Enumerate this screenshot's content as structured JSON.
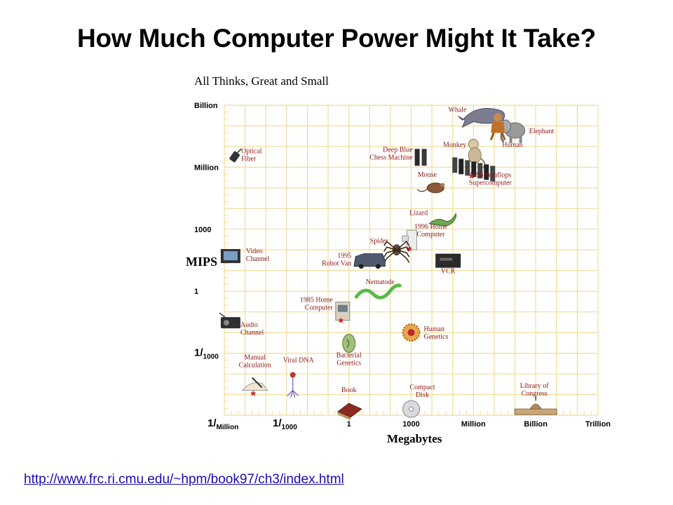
{
  "slide": {
    "title": "How Much Computer Power Might It Take?",
    "source_link": "http://www.frc.ri.cmu.edu/~hpm/book97/ch3/index.html"
  },
  "colors": {
    "grid": "#f2dc9a",
    "text": "#8b1a1a",
    "asterisk": "#cc1b1b",
    "axis_text": "#000000"
  },
  "chart_data": {
    "type": "scatter",
    "title": "All Thinks, Great and Small",
    "xlabel": "Megabytes",
    "ylabel": "MIPS",
    "x_scale": "log",
    "y_scale": "log",
    "xlim": [
      1e-06,
      1000000000000.0
    ],
    "ylim": [
      1e-06,
      1000000000.0
    ],
    "grid": true,
    "x_ticks": [
      {
        "value": 1e-06,
        "label": "1/Million",
        "num": "1",
        "den": "Million"
      },
      {
        "value": 0.001,
        "label": "1/1000",
        "num": "1",
        "den": "1000"
      },
      {
        "value": 1,
        "label": "1"
      },
      {
        "value": 1000.0,
        "label": "1000"
      },
      {
        "value": 1000000.0,
        "label": "Million"
      },
      {
        "value": 1000000000.0,
        "label": "Billion"
      },
      {
        "value": 1000000000000.0,
        "label": "Trillion"
      }
    ],
    "y_ticks": [
      {
        "value": 1000000000.0,
        "label": "Billion"
      },
      {
        "value": 1000000.0,
        "label": "Million"
      },
      {
        "value": 1000.0,
        "label": "1000"
      },
      {
        "value": 1,
        "label": "1"
      },
      {
        "value": 0.001,
        "label": "1/1000",
        "num": "1",
        "den": "1000"
      }
    ],
    "points": [
      {
        "label": "Whale",
        "x": 3000000.0,
        "y": 300000000.0,
        "icon": "whale-icon"
      },
      {
        "label": "Elephant",
        "x": 100000000.0,
        "y": 60000000.0,
        "icon": "elephant-icon"
      },
      {
        "label": "Human",
        "x": 15000000.0,
        "y": 100000000.0,
        "icon": "human-icon"
      },
      {
        "label": "Monkey",
        "x": 1000000.0,
        "y": 6000000.0,
        "icon": "monkey-icon"
      },
      {
        "label": "Deep Blue Chess Machine",
        "x": 3000,
        "y": 3000000.0,
        "icon": "deep-blue-icon"
      },
      {
        "label": "Mouse",
        "x": 15000.0,
        "y": 100000.0,
        "icon": "mouse-icon"
      },
      {
        "label": "1996 Teraflops Supercomputer",
        "x": 1000000.0,
        "y": 1000000.0,
        "icon": "supercomputer-icon",
        "asterisk": true
      },
      {
        "label": "Optical Fiber",
        "x": 3e-06,
        "y": 3000000.0,
        "icon": "optical-fiber-icon"
      },
      {
        "label": "Lizard",
        "x": 30000.0,
        "y": 3000,
        "icon": "lizard-icon"
      },
      {
        "label": "1996 Home Computer",
        "x": 1000,
        "y": 300,
        "icon": "home-computer-icon",
        "asterisk": true
      },
      {
        "label": "Spider",
        "x": 200,
        "y": 100,
        "icon": "spider-icon"
      },
      {
        "label": "1995 Robot Van",
        "x": 10,
        "y": 30,
        "icon": "robot-van-icon"
      },
      {
        "label": "VCR",
        "x": 60000.0,
        "y": 30,
        "icon": "vcr-icon"
      },
      {
        "label": "Video Channel",
        "x": 2e-06,
        "y": 50,
        "icon": "video-channel-icon"
      },
      {
        "label": "Nematode",
        "x": 20,
        "y": 1,
        "icon": "nematode-icon"
      },
      {
        "label": "1985 Home Computer",
        "x": 0.5,
        "y": 0.1,
        "icon": "old-computer-icon",
        "asterisk": true
      },
      {
        "label": "Human Genetics",
        "x": 1000,
        "y": 0.01,
        "icon": "human-genetics-icon"
      },
      {
        "label": "Audio Channel",
        "x": 2e-06,
        "y": 0.03,
        "icon": "audio-channel-icon"
      },
      {
        "label": "Bacterial Genetics",
        "x": 1,
        "y": 0.003,
        "icon": "bacterial-genetics-icon"
      },
      {
        "label": "Manual Calculation",
        "x": 3e-05,
        "y": 3e-05,
        "icon": "manual-calculation-icon",
        "asterisk": true
      },
      {
        "label": "Viral DNA",
        "x": 0.002,
        "y": 3e-05,
        "icon": "viral-dna-icon"
      },
      {
        "label": "Book",
        "x": 1,
        "y": 2e-06,
        "icon": "book-icon"
      },
      {
        "label": "Compact Disk",
        "x": 1000,
        "y": 2e-06,
        "icon": "compact-disk-icon"
      },
      {
        "label": "Library of Congress",
        "x": 1000000000.0,
        "y": 2e-06,
        "icon": "library-icon"
      }
    ]
  }
}
